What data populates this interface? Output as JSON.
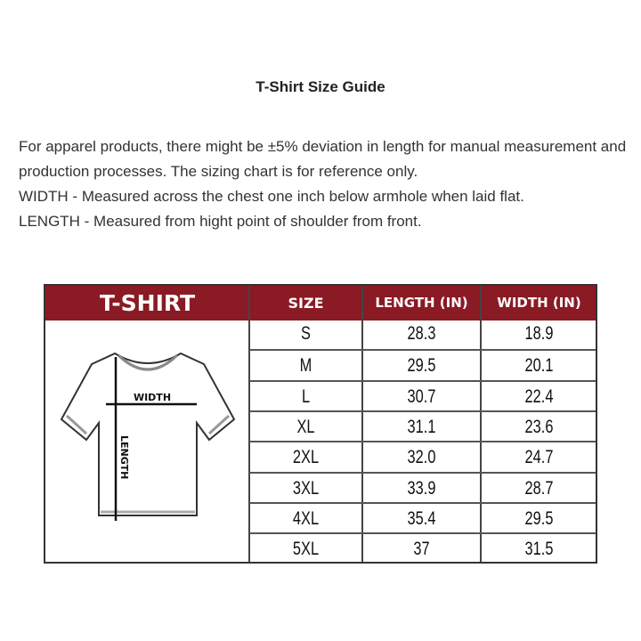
{
  "title": "T-Shirt Size Guide",
  "description": [
    "For apparel products, there might be ±5% deviation in length for manual measurement and production processes. The sizing chart is for reference only.",
    "WIDTH - Measured across the chest one inch below armhole when laid flat.",
    "LENGTH - Measured from hight point of shoulder from front."
  ],
  "chart": {
    "header": {
      "product": "T-SHIRT",
      "size": "SIZE",
      "length": "LENGTH (IN)",
      "width": "WIDTH (IN)"
    },
    "diagram": {
      "width_label": "WIDTH",
      "length_label": "LENGTH"
    },
    "rows": [
      {
        "size": "S",
        "length": "28.3",
        "width": "18.9"
      },
      {
        "size": "M",
        "length": "29.5",
        "width": "20.1"
      },
      {
        "size": "L",
        "length": "30.7",
        "width": "22.4"
      },
      {
        "size": "XL",
        "length": "31.1",
        "width": "23.6"
      },
      {
        "size": "2XL",
        "length": "32.0",
        "width": "24.7"
      },
      {
        "size": "3XL",
        "length": "33.9",
        "width": "28.7"
      },
      {
        "size": "4XL",
        "length": "35.4",
        "width": "29.5"
      },
      {
        "size": "5XL",
        "length": "37",
        "width": "31.5"
      }
    ],
    "colors": {
      "header_bg": "#8a1a24",
      "header_text": "#ffffff"
    }
  }
}
